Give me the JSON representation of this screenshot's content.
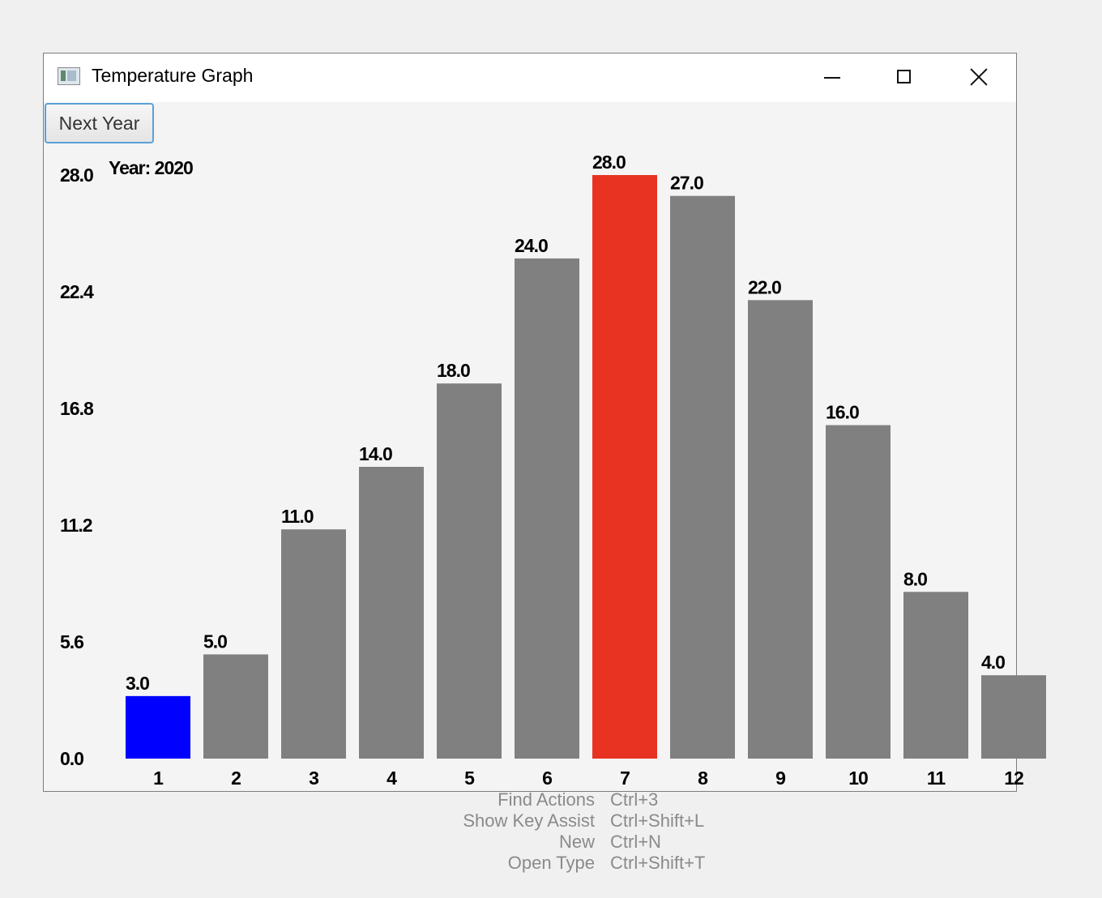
{
  "window": {
    "title": "Temperature Graph",
    "app_icon": "window-app-icon",
    "controls": {
      "minimize": "minimize-icon",
      "maximize": "maximize-icon",
      "close": "close-icon"
    }
  },
  "toolbar": {
    "next_year_label": "Next Year"
  },
  "year_label": "Year: 2020",
  "chart_data": {
    "type": "bar",
    "categories": [
      "1",
      "2",
      "3",
      "4",
      "5",
      "6",
      "7",
      "8",
      "9",
      "10",
      "11",
      "12"
    ],
    "values": [
      3.0,
      5.0,
      11.0,
      14.0,
      18.0,
      24.0,
      28.0,
      27.0,
      22.0,
      16.0,
      8.0,
      4.0
    ],
    "value_labels": [
      "3.0",
      "5.0",
      "11.0",
      "14.0",
      "18.0",
      "24.0",
      "28.0",
      "27.0",
      "22.0",
      "16.0",
      "8.0",
      "4.0"
    ],
    "y_ticks": [
      "0.0",
      "5.6",
      "11.2",
      "16.8",
      "22.4",
      "28.0"
    ],
    "ylim": [
      0,
      28
    ],
    "colors": {
      "default": "#808080",
      "min": "#0000ff",
      "max": "#e83222"
    },
    "grid": false,
    "legend": "none"
  },
  "shortcuts": [
    {
      "name": "Find Actions",
      "key": "Ctrl+3"
    },
    {
      "name": "Show Key Assist",
      "key": "Ctrl+Shift+L"
    },
    {
      "name": "New",
      "key": "Ctrl+N"
    },
    {
      "name": "Open Type",
      "key": "Ctrl+Shift+T"
    }
  ]
}
